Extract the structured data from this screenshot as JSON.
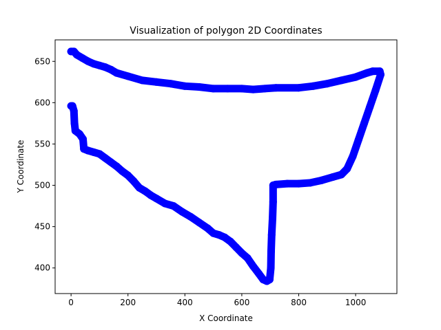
{
  "chart_data": {
    "type": "scatter",
    "title": "Visualization of polygon 2D Coordinates",
    "x_label": "X Coordinate",
    "y_label": "Y Coordinate",
    "color": "#0000ff",
    "x": [
      0,
      10,
      20,
      40,
      60,
      80,
      100,
      120,
      140,
      160,
      200,
      250,
      300,
      350,
      400,
      450,
      500,
      550,
      600,
      640,
      680,
      720,
      800,
      850,
      900,
      950,
      1000,
      1040,
      1060,
      1085,
      1088,
      1070,
      1050,
      1030,
      1010,
      990,
      970,
      950,
      920,
      880,
      840,
      800,
      760,
      720,
      710,
      710,
      708,
      705,
      703,
      702,
      698,
      688,
      675,
      660,
      640,
      620,
      600,
      580,
      560,
      540,
      520,
      500,
      480,
      450,
      420,
      390,
      360,
      330,
      300,
      280,
      260,
      240,
      220,
      200,
      180,
      160,
      140,
      120,
      100,
      80,
      60,
      45,
      42,
      30,
      15,
      12,
      10,
      5,
      0
    ],
    "values": [
      662,
      662,
      658,
      654,
      650,
      647,
      645,
      643,
      640,
      636,
      632,
      627,
      625,
      623,
      620,
      619,
      617,
      617,
      617,
      616,
      617,
      618,
      618,
      620,
      623,
      627,
      631,
      636,
      638,
      638,
      634,
      615,
      595,
      575,
      555,
      535,
      520,
      513,
      510,
      506,
      503,
      502,
      502,
      501,
      500,
      480,
      460,
      440,
      420,
      400,
      386,
      384,
      386,
      393,
      402,
      412,
      418,
      425,
      432,
      437,
      440,
      442,
      448,
      455,
      462,
      468,
      475,
      478,
      484,
      488,
      493,
      497,
      505,
      512,
      517,
      523,
      528,
      533,
      538,
      540,
      542,
      544,
      556,
      562,
      566,
      575,
      590,
      596,
      596
    ],
    "xlim": [
      -56,
      1145
    ],
    "ylim": [
      369,
      676
    ],
    "xticks": [
      0,
      200,
      400,
      600,
      800,
      1000
    ],
    "yticks": [
      400,
      450,
      500,
      550,
      600,
      650
    ]
  }
}
